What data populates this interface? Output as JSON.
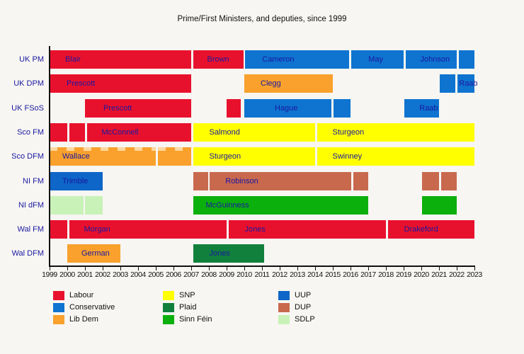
{
  "title": "Prime/First Ministers, and deputies, since 1999",
  "colors": {
    "labour": "#e8112d",
    "conservative": "#0e74d0",
    "libdem": "#f9a12c",
    "snp": "#ffff00",
    "plaid": "#11803c",
    "sinnfein": "#0cb00c",
    "uup": "#0d66c8",
    "dup": "#c8694e",
    "sdlp": "#c9f2b8"
  },
  "chart_data": {
    "type": "bar",
    "subtype": "gantt-timeline",
    "title": "Prime/First Ministers, and deputies, since 1999",
    "x_axis": {
      "start_year": 1999,
      "end_year": 2023,
      "tick_step": 1
    },
    "grid": false,
    "rows": [
      {
        "label": "UK PM",
        "bars": [
          {
            "from": 1999.0,
            "to": 2007.0,
            "party": "labour",
            "label": "Blair",
            "inset": 22
          },
          {
            "from": 2007.1,
            "to": 2009.95,
            "party": "labour",
            "label": "Brown",
            "inset": 20
          },
          {
            "from": 2010.05,
            "to": 2015.9,
            "party": "conservative",
            "label": "Cameron",
            "inset": 24
          },
          {
            "from": 2016.05,
            "to": 2019.0,
            "party": "conservative",
            "label": "May",
            "inset": 24
          },
          {
            "from": 2019.1,
            "to": 2022.0,
            "party": "conservative",
            "label": "Johnson",
            "inset": 21
          },
          {
            "from": 2022.1,
            "to": 2023.0,
            "party": "conservative"
          }
        ]
      },
      {
        "label": "UK DPM",
        "bars": [
          {
            "from": 1999.0,
            "to": 2007.0,
            "party": "labour",
            "label": "Prescott",
            "inset": 24
          },
          {
            "from": 2010.0,
            "to": 2015.0,
            "party": "libdem",
            "label": "Clegg",
            "inset": 23
          },
          {
            "from": 2021.05,
            "to": 2021.9,
            "party": "conservative"
          },
          {
            "from": 2022.05,
            "to": 2023.0,
            "party": "conservative",
            "label": "Raab",
            "inset": 2
          }
        ]
      },
      {
        "label": "UK FSoS",
        "bars": [
          {
            "from": 2001.0,
            "to": 2007.0,
            "party": "labour",
            "label": "Prescott",
            "inset": 26
          },
          {
            "from": 2009.0,
            "to": 2009.8,
            "party": "labour"
          },
          {
            "from": 2010.0,
            "to": 2014.9,
            "party": "conservative",
            "label": "Hague",
            "inset": 43
          },
          {
            "from": 2015.05,
            "to": 2016.0,
            "party": "conservative"
          },
          {
            "from": 2019.05,
            "to": 2021.0,
            "party": "conservative",
            "label": "Raab",
            "inset": 21
          }
        ]
      },
      {
        "label": "Sco FM",
        "bars": [
          {
            "from": 1999.0,
            "to": 2000.0,
            "party": "labour"
          },
          {
            "from": 2000.1,
            "to": 2001.0,
            "party": "labour"
          },
          {
            "from": 2001.1,
            "to": 2007.0,
            "party": "labour",
            "label": "McConnell",
            "inset": 21
          },
          {
            "from": 2007.1,
            "to": 2014.0,
            "party": "snp",
            "label": "Salmond",
            "inset": 23
          },
          {
            "from": 2014.1,
            "to": 2023.0,
            "party": "snp",
            "label": "Sturgeon",
            "inset": 22
          }
        ]
      },
      {
        "label": "Sco DFM",
        "bars": [
          {
            "from": 1999.0,
            "to": 2005.0,
            "party": "libdem",
            "label": "Wallace",
            "inset": 18,
            "scallop": true
          },
          {
            "from": 2005.1,
            "to": 2007.0,
            "party": "libdem",
            "scallop": true
          },
          {
            "from": 2007.1,
            "to": 2014.0,
            "party": "snp",
            "label": "Sturgeon",
            "inset": 23
          },
          {
            "from": 2014.1,
            "to": 2023.0,
            "party": "snp",
            "label": "Swinney",
            "inset": 22
          }
        ]
      },
      {
        "label": "NI FM",
        "bars": [
          {
            "from": 1999.0,
            "to": 2002.0,
            "party": "uup",
            "label": "Trimble",
            "inset": 18
          },
          {
            "from": 2007.1,
            "to": 2007.95,
            "party": "dup"
          },
          {
            "from": 2008.05,
            "to": 2016.05,
            "party": "dup",
            "label": "Robinson",
            "inset": 22
          },
          {
            "from": 2016.15,
            "to": 2017.0,
            "party": "dup"
          },
          {
            "from": 2020.05,
            "to": 2021.0,
            "party": "dup"
          },
          {
            "from": 2021.1,
            "to": 2022.0,
            "party": "dup"
          }
        ]
      },
      {
        "label": "NI dFM",
        "bars": [
          {
            "from": 1999.0,
            "to": 2000.9,
            "party": "sdlp"
          },
          {
            "from": 2001.0,
            "to": 2002.0,
            "party": "sdlp"
          },
          {
            "from": 2007.1,
            "to": 2017.0,
            "party": "sinnfein",
            "label": "McGuinness",
            "inset": 18
          },
          {
            "from": 2020.05,
            "to": 2022.0,
            "party": "sinnfein"
          }
        ]
      },
      {
        "label": "Wal FM",
        "bars": [
          {
            "from": 1999.0,
            "to": 2000.0,
            "party": "labour"
          },
          {
            "from": 2000.1,
            "to": 2009.0,
            "party": "labour",
            "label": "Morgan",
            "inset": 21
          },
          {
            "from": 2009.1,
            "to": 2018.0,
            "party": "labour",
            "label": "Jones",
            "inset": 23
          },
          {
            "from": 2018.1,
            "to": 2023.0,
            "party": "labour",
            "label": "Drakeford",
            "inset": 23
          }
        ]
      },
      {
        "label": "Wal DFM",
        "bars": [
          {
            "from": 2000.0,
            "to": 2003.0,
            "party": "libdem",
            "label": "German",
            "inset": 20
          },
          {
            "from": 2007.1,
            "to": 2011.1,
            "party": "plaid",
            "label": "Jones",
            "inset": 23
          }
        ]
      }
    ],
    "legend_columns": [
      [
        {
          "label": "Labour",
          "party": "labour"
        },
        {
          "label": "Conservative",
          "party": "conservative"
        },
        {
          "label": "Lib Dem",
          "party": "libdem"
        }
      ],
      [
        {
          "label": "SNP",
          "party": "snp"
        },
        {
          "label": "Plaid",
          "party": "plaid"
        },
        {
          "label": "Sinn Féin",
          "party": "sinnfein"
        }
      ],
      [
        {
          "label": "UUP",
          "party": "uup"
        },
        {
          "label": "DUP",
          "party": "dup"
        },
        {
          "label": "SDLP",
          "party": "sdlp"
        }
      ]
    ]
  }
}
